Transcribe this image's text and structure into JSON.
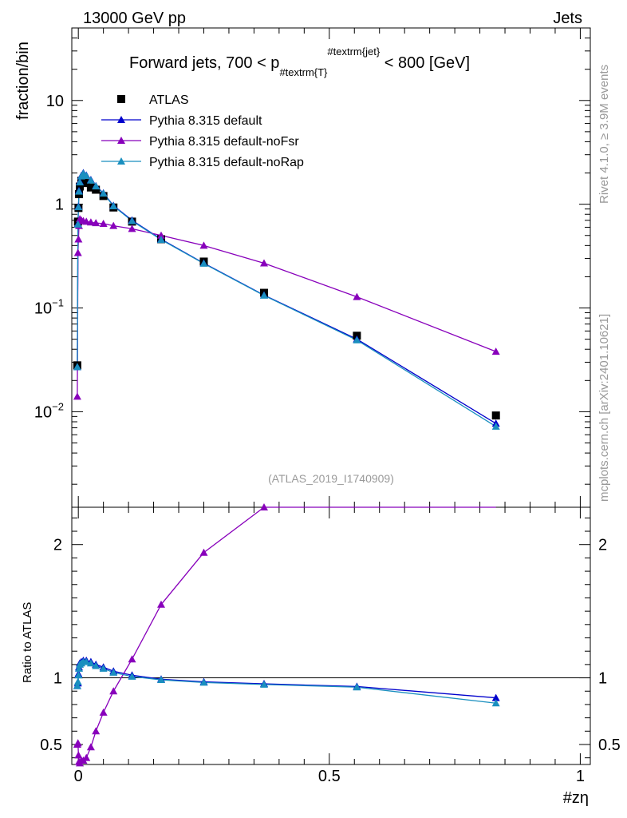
{
  "header": {
    "left": "13000 GeV pp",
    "right": "Jets"
  },
  "side": {
    "rivet": "Rivet 4.1.0, ≥ 3.9M events",
    "mcplots": "mcplots.cern.ch [arXiv:2401.10621]"
  },
  "colors": {
    "atlas": "#000000",
    "default": "#0000cc",
    "noFsr": "#8800bb",
    "noRap": "#1a8fbf",
    "axis": "#000000",
    "watermark": "#999999"
  },
  "chart_data": [
    {
      "id": "main",
      "type": "scatter",
      "title_parts": {
        "pre": "Forward jets, 700 < p",
        "sub": "#textrm{T}",
        "sup": "#textrm{jet}",
        "post": " < 800 [GeV]"
      },
      "watermark": "(ATLAS_2019_I1740909)",
      "ylabel": "fraction/bin",
      "yscale": "log",
      "ylim": [
        0.0012,
        50
      ],
      "xlim": [
        -0.013,
        1.02
      ],
      "ytick_labels": [
        {
          "value": 10,
          "base": "10",
          "exp": ""
        },
        {
          "value": 1,
          "base": "1",
          "exp": ""
        },
        {
          "value": 0.1,
          "base": "10",
          "exp": "−1"
        },
        {
          "value": 0.01,
          "base": "10",
          "exp": "−2"
        }
      ],
      "legend": [
        {
          "label": "ATLAS",
          "marker": "square",
          "color": "#000000"
        },
        {
          "label": "Pythia 8.315 default",
          "marker": "triangle",
          "color": "#0000cc"
        },
        {
          "label": "Pythia 8.315 default-noFsr",
          "marker": "triangle",
          "color": "#8800bb"
        },
        {
          "label": "Pythia 8.315 default-noRap",
          "marker": "triangle",
          "color": "#1a8fbf"
        }
      ],
      "x": [
        -0.002,
        -0.0007,
        0.0003,
        0.0013,
        0.003,
        0.006,
        0.01,
        0.016,
        0.025,
        0.035,
        0.05,
        0.07,
        0.107,
        0.165,
        0.25,
        0.37,
        0.555,
        0.832
      ],
      "series": [
        {
          "name": "ATLAS",
          "color": "#000000",
          "marker": "square",
          "values": [
            0.028,
            0.68,
            0.92,
            1.25,
            1.48,
            1.68,
            1.72,
            1.6,
            1.45,
            1.38,
            1.2,
            0.93,
            0.68,
            0.46,
            0.28,
            0.14,
            0.054,
            0.0092
          ]
        },
        {
          "name": "Pythia 8.315 default",
          "color": "#0000cc",
          "marker": "triangle",
          "values": [
            0.027,
            0.65,
            0.95,
            1.35,
            1.65,
            1.88,
            2.0,
            1.9,
            1.72,
            1.5,
            1.28,
            0.97,
            0.7,
            0.46,
            0.27,
            0.133,
            0.05,
            0.0077
          ]
        },
        {
          "name": "Pythia 8.315 default-noFsr",
          "color": "#8800bb",
          "marker": "triangle",
          "values": [
            0.014,
            0.34,
            0.46,
            0.62,
            0.72,
            0.7,
            0.69,
            0.68,
            0.67,
            0.66,
            0.65,
            0.62,
            0.58,
            0.5,
            0.4,
            0.27,
            0.128,
            0.038
          ]
        },
        {
          "name": "Pythia 8.315 default-noRap",
          "color": "#1a8fbf",
          "marker": "triangle",
          "values": [
            0.027,
            0.64,
            0.94,
            1.33,
            1.63,
            1.86,
            1.98,
            1.88,
            1.7,
            1.49,
            1.27,
            0.96,
            0.69,
            0.455,
            0.268,
            0.132,
            0.049,
            0.0072
          ]
        }
      ]
    },
    {
      "id": "ratio",
      "type": "line",
      "ylabel": "Ratio to ATLAS",
      "ylim": [
        0.35,
        2.28
      ],
      "xlim": [
        -0.013,
        1.02
      ],
      "xlabel": "#zη",
      "yticks": [
        0.5,
        1,
        2
      ],
      "ytick_labels": [
        "0.5",
        "1",
        "2"
      ],
      "xticks": [
        0,
        0.5,
        1
      ],
      "xtick_labels": [
        "0",
        "0.5",
        "1"
      ],
      "x": [
        -0.002,
        -0.0007,
        0.0003,
        0.0013,
        0.003,
        0.006,
        0.01,
        0.016,
        0.025,
        0.035,
        0.05,
        0.07,
        0.107,
        0.165,
        0.25,
        0.37,
        0.555,
        0.832
      ],
      "series": [
        {
          "name": "Pythia 8.315 default",
          "color": "#0000cc",
          "values": [
            0.94,
            0.96,
            1.03,
            1.08,
            1.11,
            1.12,
            1.13,
            1.13,
            1.12,
            1.1,
            1.08,
            1.05,
            1.02,
            0.99,
            0.97,
            0.955,
            0.935,
            0.85
          ]
        },
        {
          "name": "Pythia 8.315 default-noFsr",
          "color": "#8800bb",
          "values": [
            0.5,
            0.51,
            0.42,
            0.37,
            0.36,
            0.38,
            0.38,
            0.4,
            0.48,
            0.6,
            0.74,
            0.9,
            1.14,
            1.55,
            1.94,
            2.28,
            2.28,
            2.28
          ]
        },
        {
          "name": "Pythia 8.315 default-noRap",
          "color": "#1a8fbf",
          "values": [
            0.94,
            0.97,
            1.02,
            1.07,
            1.1,
            1.11,
            1.12,
            1.12,
            1.11,
            1.09,
            1.07,
            1.04,
            1.01,
            0.985,
            0.965,
            0.95,
            0.93,
            0.81
          ]
        }
      ]
    }
  ]
}
